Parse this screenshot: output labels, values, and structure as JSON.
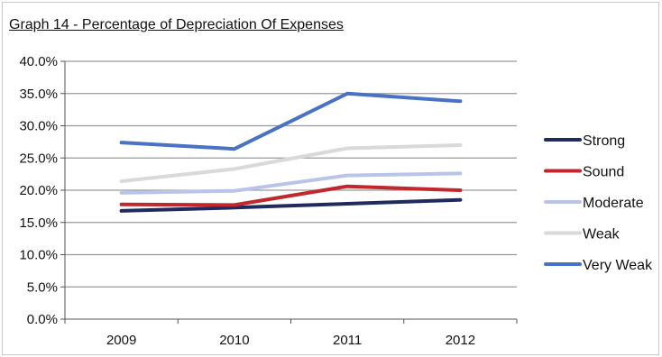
{
  "chart_data": {
    "type": "line",
    "title": "Graph 14 - Percentage of Depreciation Of Expenses",
    "xlabel": "",
    "ylabel": "",
    "categories": [
      "2009",
      "2010",
      "2011",
      "2012"
    ],
    "ylim": [
      0,
      40
    ],
    "y_ticks": [
      "0.0%",
      "5.0%",
      "10.0%",
      "15.0%",
      "20.0%",
      "25.0%",
      "30.0%",
      "35.0%",
      "40.0%"
    ],
    "grid": true,
    "legend_position": "right",
    "series": [
      {
        "name": "Strong",
        "color": "#1f2a5e",
        "values": [
          16.8,
          17.3,
          17.9,
          18.5
        ]
      },
      {
        "name": "Sound",
        "color": "#c0282d",
        "values": [
          17.8,
          17.7,
          20.6,
          20.0
        ]
      },
      {
        "name": "Moderate",
        "color": "#b8c4ea",
        "values": [
          19.6,
          19.9,
          22.3,
          22.6
        ]
      },
      {
        "name": "Weak",
        "color": "#d9d9d9",
        "values": [
          21.4,
          23.3,
          26.5,
          27.0
        ]
      },
      {
        "name": "Very Weak",
        "color": "#4a72c4",
        "values": [
          27.4,
          26.4,
          35.0,
          33.8
        ]
      }
    ]
  }
}
